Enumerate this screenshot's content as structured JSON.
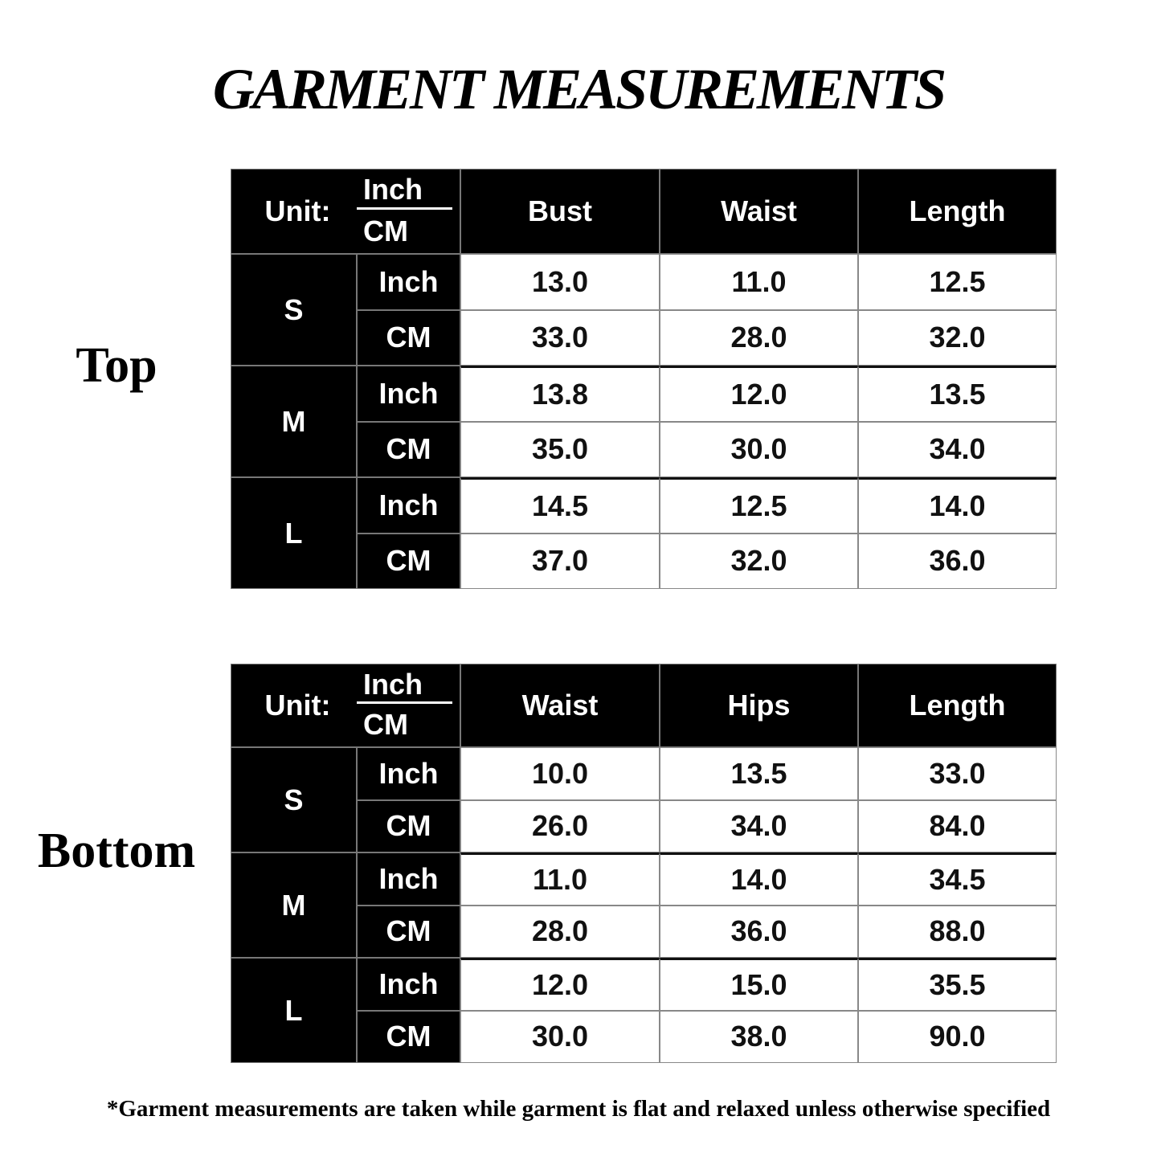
{
  "title": "GARMENT MEASUREMENTS",
  "tables": [
    {
      "label": "Top",
      "unit_label": "Unit:",
      "unit_top": "Inch",
      "unit_bottom": "CM",
      "columns": [
        "Bust",
        "Waist",
        "Length"
      ],
      "sizes": [
        {
          "size": "S",
          "rows": [
            {
              "unit": "Inch",
              "values": [
                "13.0",
                "11.0",
                "12.5"
              ]
            },
            {
              "unit": "CM",
              "values": [
                "33.0",
                "28.0",
                "32.0"
              ]
            }
          ]
        },
        {
          "size": "M",
          "rows": [
            {
              "unit": "Inch",
              "values": [
                "13.8",
                "12.0",
                "13.5"
              ]
            },
            {
              "unit": "CM",
              "values": [
                "35.0",
                "30.0",
                "34.0"
              ]
            }
          ]
        },
        {
          "size": "L",
          "rows": [
            {
              "unit": "Inch",
              "values": [
                "14.5",
                "12.5",
                "14.0"
              ]
            },
            {
              "unit": "CM",
              "values": [
                "37.0",
                "32.0",
                "36.0"
              ]
            }
          ]
        }
      ]
    },
    {
      "label": "Bottom",
      "unit_label": "Unit:",
      "unit_top": "Inch",
      "unit_bottom": "CM",
      "columns": [
        "Waist",
        "Hips",
        "Length"
      ],
      "sizes": [
        {
          "size": "S",
          "rows": [
            {
              "unit": "Inch",
              "values": [
                "10.0",
                "13.5",
                "33.0"
              ]
            },
            {
              "unit": "CM",
              "values": [
                "26.0",
                "34.0",
                "84.0"
              ]
            }
          ]
        },
        {
          "size": "M",
          "rows": [
            {
              "unit": "Inch",
              "values": [
                "11.0",
                "14.0",
                "34.5"
              ]
            },
            {
              "unit": "CM",
              "values": [
                "28.0",
                "36.0",
                "88.0"
              ]
            }
          ]
        },
        {
          "size": "L",
          "rows": [
            {
              "unit": "Inch",
              "values": [
                "12.0",
                "15.0",
                "35.5"
              ]
            },
            {
              "unit": "CM",
              "values": [
                "30.0",
                "38.0",
                "90.0"
              ]
            }
          ]
        }
      ]
    }
  ],
  "footnote": "*Garment measurements are taken while garment is flat and relaxed unless otherwise specified"
}
